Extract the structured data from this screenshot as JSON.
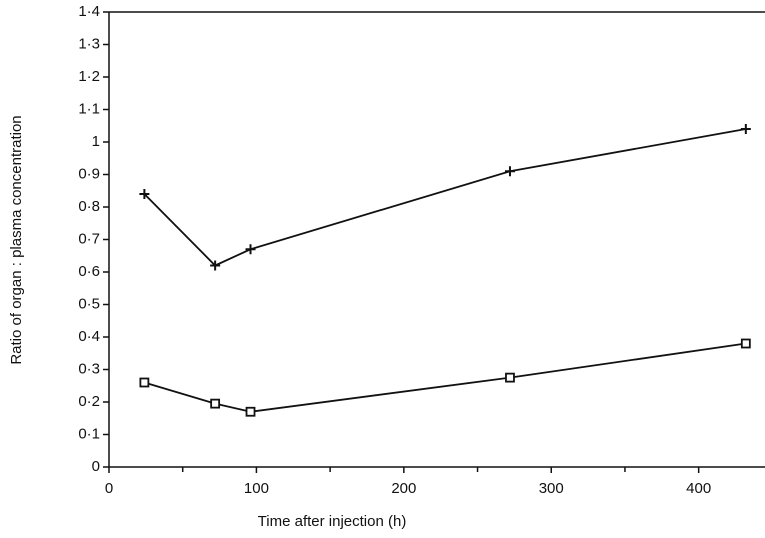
{
  "chart_data": {
    "type": "line",
    "x_label": "Time after injection (h)",
    "y_label": "Ratio of organ : plasma concentration",
    "series": [
      {
        "marker": "plus",
        "color": "#111111",
        "x": [
          24,
          72,
          96,
          272,
          432
        ],
        "values": [
          0.84,
          0.62,
          0.67,
          0.91,
          1.04
        ]
      },
      {
        "marker": "square",
        "color": "#111111",
        "x": [
          24,
          72,
          96,
          272,
          432
        ],
        "values": [
          0.26,
          0.195,
          0.17,
          0.275,
          0.38
        ]
      }
    ],
    "xlim": [
      0,
      445
    ],
    "xticks": [
      0,
      100,
      200,
      300,
      400
    ],
    "xminorticks": [
      50,
      150,
      250,
      350
    ],
    "ylim": [
      0,
      1.4
    ],
    "yticks": [
      0,
      {
        "value": 0.1,
        "label": "0·1"
      },
      {
        "value": 0.2,
        "label": "0·2"
      },
      {
        "value": 0.3,
        "label": "0·3"
      },
      {
        "value": 0.4,
        "label": "0·4"
      },
      {
        "value": 0.5,
        "label": "0·5"
      },
      {
        "value": 0.6,
        "label": "0·6"
      },
      {
        "value": 0.7,
        "label": "0·7"
      },
      {
        "value": 0.8,
        "label": "0·8"
      },
      {
        "value": 0.9,
        "label": "0·9"
      },
      1,
      {
        "value": 1.1,
        "label": "1·1"
      },
      {
        "value": 1.2,
        "label": "1·2"
      },
      {
        "value": 1.3,
        "label": "1·3"
      },
      {
        "value": 1.4,
        "label": "1·4"
      }
    ],
    "grid": false
  }
}
